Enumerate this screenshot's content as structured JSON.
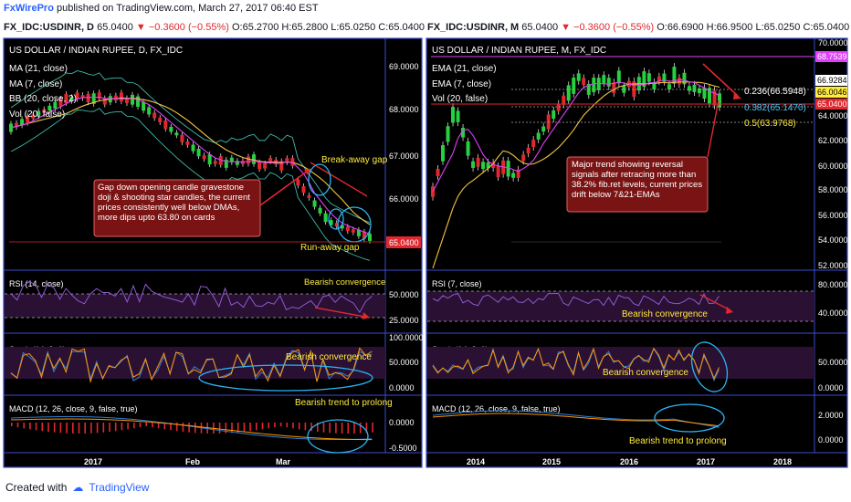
{
  "header": {
    "brand": "FxWirePro",
    "published": "published on TradingView.com, March 27, 2017 06:40 EST"
  },
  "left": {
    "quote": {
      "symbol": "FX_IDC:USDINR, D",
      "last": "65.0400",
      "change": "▼ −0.3600 (−0.55%)",
      "o": "O:65.2700",
      "h": "H:65.2800",
      "l": "L:65.0250",
      "c": "C:65.0400"
    },
    "title": "US DOLLAR / INDIAN RUPEE, D, FX_IDC",
    "legend": [
      "MA (21, close)",
      "MA (7, close)",
      "BB (20, close, 2)",
      "Vol (20, false)"
    ],
    "price_axis": [
      "69.0000",
      "68.0000",
      "67.0000",
      "66.0000"
    ],
    "last_price": "65.0400",
    "rsi": {
      "label": "RSI (14, close)",
      "axis": [
        "50.0000",
        "25.0000"
      ]
    },
    "stoch": {
      "label": "Stoch (14, 3, 1)",
      "axis": [
        "100.0000",
        "50.0000",
        "0.0000"
      ]
    },
    "macd": {
      "label": "MACD (12, 26, close, 9, false, true)",
      "axis": [
        "0.0000",
        "-0.5000"
      ]
    },
    "time_axis": [
      "2017",
      "Feb",
      "Mar"
    ],
    "annotations": {
      "gap_box": "Gap down opening candle gravestone doji & shooting star candles, the current prices consistently well below DMAs, more dips upto 63.80 on cards",
      "break_away": "Break-away gap",
      "run_away": "Run-away gap",
      "rsi_bear": "Bearish convergence",
      "stoch_bear": "Bearish convergence",
      "macd_bear": "Bearish trend to prolong"
    }
  },
  "right": {
    "quote": {
      "symbol": "FX_IDC:USDINR, M",
      "last": "65.0400",
      "change": "▼ −0.3600 (−0.55%)",
      "o": "O:66.6900",
      "h": "H:66.9500",
      "l": "L:65.0250",
      "c": "C:65.0400"
    },
    "title": "US DOLLAR / INDIAN RUPEE, M, FX_IDC",
    "legend": [
      "EMA (21, close)",
      "EMA (7, close)",
      "Vol (20, false)"
    ],
    "price_axis": [
      "70.0000",
      "64.0000",
      "62.0000",
      "60.0000",
      "58.0000",
      "56.0000",
      "54.0000",
      "52.0000"
    ],
    "price_tags": [
      "68.7539",
      "66.9284",
      "66.0046",
      "65.0400"
    ],
    "fib": [
      "0.236(66.5948)",
      "0.382(65.1470)",
      "0.5(63.9768)"
    ],
    "rsi": {
      "label": "RSI (7, close)",
      "axis": [
        "80.0000",
        "40.0000"
      ]
    },
    "stoch": {
      "label": "Stoch (14, 3, 1)",
      "axis": [
        "50.0000",
        "0.0000"
      ]
    },
    "macd": {
      "label": "MACD (12, 26, close, 9, false, true)",
      "axis": [
        "2.0000",
        "0.0000"
      ]
    },
    "time_axis": [
      "2014",
      "2015",
      "2016",
      "2017",
      "2018"
    ],
    "annotations": {
      "trend_box": "Major trend showing reversal signals after retracing more than 38.2% fib.ret levels, current prices drift below 7&21-EMAs",
      "rsi_bear": "Bearish convergence",
      "stoch_bear": "Bearish convergence",
      "macd_bear": "Bearish trend to prolong"
    }
  },
  "footer": {
    "created_with": "Created with",
    "tradingview": "TradingView"
  }
}
